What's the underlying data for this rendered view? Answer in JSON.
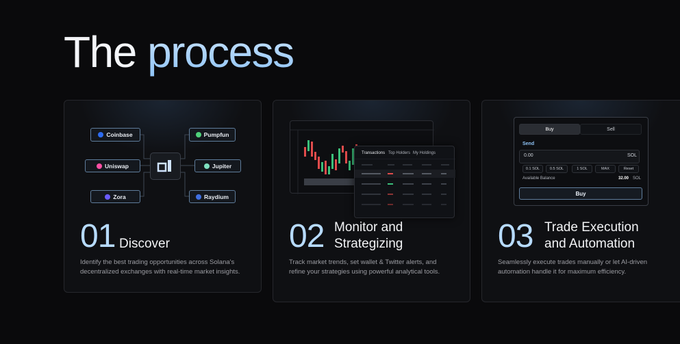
{
  "header": {
    "title_part1": "The",
    "title_part2": "process"
  },
  "cards": [
    {
      "number": "01",
      "title": [
        "Discover"
      ],
      "description": [
        "Identify the best trading opportunities across Solana's",
        "decentralized exchanges with real-time market insights."
      ],
      "illustration": {
        "left_nodes": [
          "Coinbase",
          "Uniswap",
          "Zora"
        ],
        "right_nodes": [
          "Pumpfun",
          "Jupiter",
          "Raydium"
        ]
      }
    },
    {
      "number": "02",
      "title": [
        "Monitor and",
        "Strategizing"
      ],
      "description": [
        "Track market trends, set wallet & Twitter alerts, and",
        "refine your strategies using powerful analytical tools."
      ],
      "illustration": {
        "tabs": [
          "Transactions",
          "Top Holders",
          "My Holdings"
        ]
      }
    },
    {
      "number": "03",
      "title": [
        "Trade Execution",
        "and Automation"
      ],
      "description": [
        "Seamlessly execute trades manually or let AI-driven",
        "automation handle it for maximum efficiency."
      ],
      "illustration": {
        "tabs": [
          "Buy",
          "Sell"
        ],
        "send_label": "Send",
        "amount": "0.00",
        "unit": "SOL",
        "presets": [
          "0.1 SOL",
          "0.5 SOL",
          "1 SOL",
          "MAX",
          "Reset"
        ],
        "balance_label": "Available Balance",
        "balance": "32.00",
        "balance_unit": "SOL",
        "action": "Buy"
      }
    }
  ]
}
